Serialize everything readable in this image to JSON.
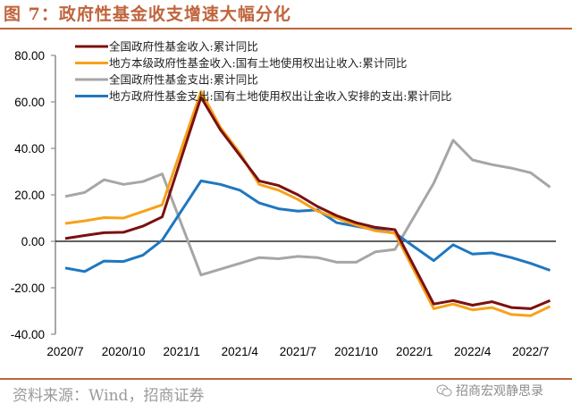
{
  "figure": {
    "title": "图 7：政府性基金收支增速大幅分化",
    "source": "资料来源：Wind，招商证券",
    "watermark": "招商宏观静思录",
    "watermark_icon": "wechat-icon",
    "accent_color": "#c0643c"
  },
  "chart_data": {
    "type": "line",
    "title": "政府性基金收支增速大幅分化",
    "xlabel": "",
    "ylabel": "",
    "ylim": [
      -40,
      80
    ],
    "yticks": [
      80,
      60,
      40,
      20,
      0,
      -20,
      -40
    ],
    "ytick_labels": [
      "80.00",
      "60.00",
      "40.00",
      "20.00",
      "0.00",
      "-20.00",
      "-40.00"
    ],
    "xtick_labels": [
      "2020/7",
      "2020/10",
      "2021/1",
      "2021/4",
      "2021/7",
      "2021/10",
      "2022/1",
      "2022/4",
      "2022/7"
    ],
    "xtick_month_index": [
      0,
      3,
      6,
      9,
      12,
      15,
      18,
      21,
      24
    ],
    "x": [
      "2020/7",
      "2020/8",
      "2020/9",
      "2020/10",
      "2020/11",
      "2020/12",
      "2021/2",
      "2021/3",
      "2021/4",
      "2021/5",
      "2021/6",
      "2021/7",
      "2021/8",
      "2021/9",
      "2021/10",
      "2021/11",
      "2021/12",
      "2022/2",
      "2022/3",
      "2022/4",
      "2022/5",
      "2022/6",
      "2022/7",
      "2022/8"
    ],
    "x_month_index": [
      0,
      1,
      2,
      3,
      4,
      5,
      7,
      8,
      9,
      10,
      11,
      12,
      13,
      14,
      15,
      16,
      17,
      19,
      20,
      21,
      22,
      23,
      24,
      25
    ],
    "grid": false,
    "legend_position": "top-left",
    "series": [
      {
        "name": "全国政府性基金收入:累计同比",
        "color": "#7b1010",
        "values": [
          1.2,
          2.5,
          3.7,
          3.9,
          6.5,
          10.5,
          62.0,
          48.0,
          37.0,
          26.0,
          24.0,
          20.0,
          15.0,
          11.0,
          8.0,
          6.0,
          5.0,
          -27.0,
          -25.5,
          -27.5,
          -26.0,
          -28.5,
          -29.0,
          -25.5
        ]
      },
      {
        "name": "地方本级政府性基金收入:国有土地使用权出让收入:累计同比",
        "color": "#f7a11a",
        "values": [
          7.7,
          8.8,
          10.2,
          10.0,
          12.8,
          15.7,
          64.5,
          49.0,
          38.0,
          24.5,
          22.0,
          18.0,
          13.0,
          10.0,
          7.0,
          4.5,
          3.5,
          -29.0,
          -27.0,
          -29.5,
          -28.5,
          -31.5,
          -32.0,
          -28.0
        ]
      },
      {
        "name": "全国政府性基金支出:累计同比",
        "color": "#a6a6a6",
        "values": [
          19.3,
          21.0,
          26.5,
          24.5,
          25.7,
          29.0,
          -14.5,
          -12.0,
          -9.5,
          -7.0,
          -7.5,
          -6.5,
          -7.0,
          -9.0,
          -9.0,
          -4.5,
          -3.5,
          25.0,
          43.5,
          35.0,
          33.0,
          31.5,
          29.5,
          23.3
        ]
      },
      {
        "name": "地方政府性基金支出:国有土地使用权出让金收入安排的支出:累计同比",
        "color": "#1f77c0",
        "values": [
          -11.5,
          -13.0,
          -8.5,
          -8.7,
          -6.0,
          0.5,
          26.0,
          24.5,
          22.0,
          16.5,
          14.0,
          13.0,
          13.5,
          8.0,
          6.5,
          5.0,
          3.5,
          -8.3,
          -1.5,
          -5.5,
          -5.0,
          -7.0,
          -9.5,
          -12.5
        ]
      }
    ]
  }
}
